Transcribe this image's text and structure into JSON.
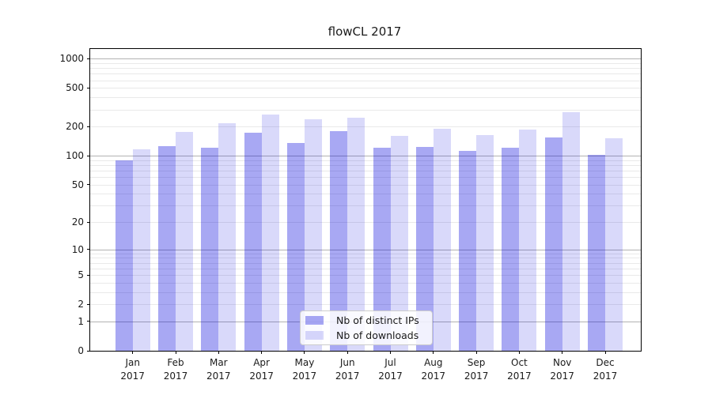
{
  "title": "flowCL 2017",
  "chart_data": {
    "type": "bar",
    "title": "flowCL 2017",
    "xlabel": "",
    "ylabel": "",
    "year": "2017",
    "categories": [
      "Jan",
      "Feb",
      "Mar",
      "Apr",
      "May",
      "Jun",
      "Jul",
      "Aug",
      "Sep",
      "Oct",
      "Nov",
      "Dec"
    ],
    "series": [
      {
        "name": "Nb of distinct IPs",
        "color": "rgba(0,0,220,0.34)",
        "values": [
          90,
          126,
          120,
          174,
          136,
          178,
          122,
          124,
          112,
          120,
          155,
          103
        ]
      },
      {
        "name": "Nb of downloads",
        "color": "rgba(0,0,220,0.15)",
        "values": [
          117,
          177,
          217,
          267,
          239,
          249,
          159,
          189,
          164,
          186,
          280,
          152
        ]
      }
    ],
    "yscale": "symlog",
    "ylim": [
      0,
      1270
    ],
    "yticks": [
      0,
      1,
      2,
      5,
      10,
      20,
      50,
      100,
      200,
      500,
      1000
    ],
    "grid": {
      "major_gridlines_at": [
        1,
        10,
        100,
        1000
      ],
      "major_color": "#b2b2b2",
      "minor_color": "#e9e9e9"
    },
    "legend_position": "lower center"
  }
}
